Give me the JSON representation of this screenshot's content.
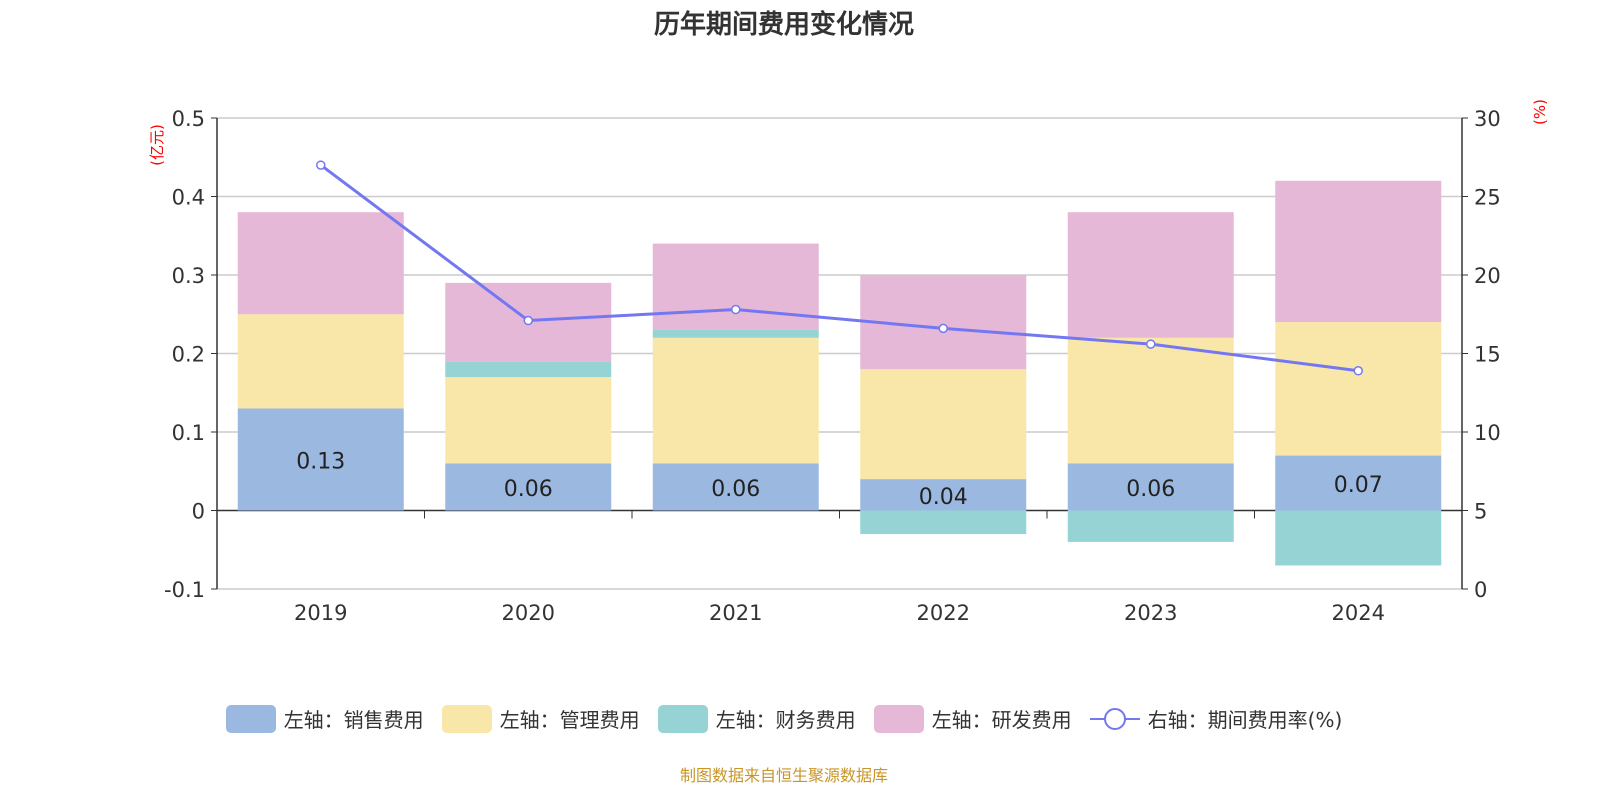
{
  "title": "历年期间费用变化情况",
  "source": "制图数据来自恒生聚源数据库",
  "chart_data": {
    "type": "bar",
    "stacked": true,
    "categories": [
      "2019",
      "2020",
      "2021",
      "2022",
      "2023",
      "2024"
    ],
    "left_axis": {
      "unit": "(亿元)",
      "range": [
        -0.1,
        0.5
      ],
      "ticks": [
        "-0.1",
        "0",
        "0.1",
        "0.2",
        "0.3",
        "0.4",
        "0.5"
      ]
    },
    "right_axis": {
      "unit": "(%)",
      "range": [
        0,
        30
      ],
      "ticks": [
        "0",
        "5",
        "10",
        "15",
        "20",
        "25",
        "30"
      ]
    },
    "grid": true,
    "legend_position": "bottom",
    "series": [
      {
        "name": "左轴：销售费用",
        "type": "bar",
        "color": "#9bb8e0",
        "values": [
          0.13,
          0.06,
          0.06,
          0.04,
          0.06,
          0.07
        ],
        "show_labels": true
      },
      {
        "name": "左轴：管理费用",
        "type": "bar",
        "color": "#f8e7a8",
        "values": [
          0.12,
          0.11,
          0.16,
          0.14,
          0.16,
          0.17
        ]
      },
      {
        "name": "左轴：财务费用",
        "type": "bar",
        "color": "#96d3d4",
        "values": [
          0.0,
          0.02,
          0.01,
          -0.03,
          -0.04,
          -0.07
        ]
      },
      {
        "name": "左轴：研发费用",
        "type": "bar",
        "color": "#e6b8d8",
        "values": [
          0.13,
          0.1,
          0.11,
          0.12,
          0.16,
          0.18
        ]
      },
      {
        "name": "右轴：期间费用率(%)",
        "type": "line",
        "color": "#7477f2",
        "values": [
          27.0,
          17.1,
          17.8,
          16.6,
          15.6,
          13.9
        ]
      }
    ]
  }
}
